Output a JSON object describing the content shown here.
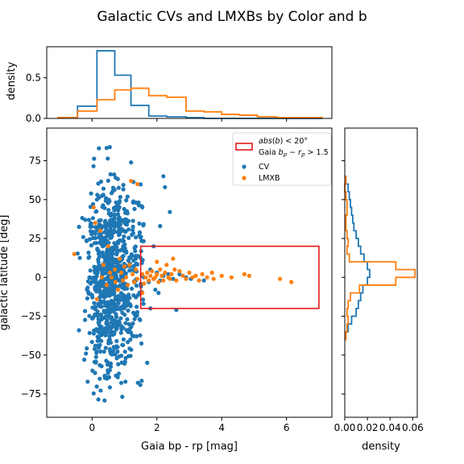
{
  "title": "Galactic CVs and LMXBs by Color and b",
  "colors": {
    "cv": "#1f77b4",
    "lmxb": "#ff7f0e",
    "box": "#e31a1c",
    "axis": "#000000"
  },
  "chart_data": [
    {
      "panel": "top-histogram",
      "type": "histogram",
      "ylabel": "density",
      "xlim": [
        -1.05,
        7.3
      ],
      "ylim": [
        0,
        0.88
      ],
      "yticks": [
        0.0,
        0.5
      ],
      "ytick_labels": [
        "0.0",
        "0.5"
      ],
      "series": [
        {
          "name": "CV",
          "edges": [
            -1.05,
            -0.45,
            0.15,
            0.7,
            1.2,
            1.75,
            2.3,
            2.9,
            3.45,
            4.0,
            4.55,
            5.1,
            5.7,
            7.1
          ],
          "values": [
            0.01,
            0.15,
            0.83,
            0.53,
            0.16,
            0.03,
            0.02,
            0.01,
            0.0,
            0.0,
            0.0,
            0.0,
            0.0
          ]
        },
        {
          "name": "LMXB",
          "edges": [
            -1.05,
            -0.45,
            0.15,
            0.7,
            1.2,
            1.75,
            2.3,
            2.9,
            3.45,
            4.0,
            4.55,
            5.1,
            5.7,
            7.1
          ],
          "values": [
            0.01,
            0.09,
            0.23,
            0.35,
            0.37,
            0.28,
            0.26,
            0.09,
            0.08,
            0.05,
            0.04,
            0.02,
            0.01
          ]
        }
      ]
    },
    {
      "panel": "main-scatter",
      "type": "scatter",
      "xlabel": "Gaia bp - rp [mag]",
      "ylabel": "galactic latitude [deg]",
      "xlim": [
        -1.4,
        7.4
      ],
      "ylim": [
        -90,
        96
      ],
      "xticks": [
        0,
        2,
        4,
        6
      ],
      "yticks": [
        -75,
        -50,
        -25,
        0,
        25,
        50,
        75
      ],
      "legend": {
        "placement": "top-right",
        "region_label": "abs(b) < 20°",
        "region_label_2": "Gaia b_p − r_p > 1.5",
        "items": [
          "CV",
          "LMXB"
        ]
      },
      "region": {
        "x": [
          1.5,
          7.0
        ],
        "y": [
          -20,
          20
        ]
      },
      "series": [
        {
          "name": "CV",
          "generated": "dense cloud of ~900 CVs, color 0–1.5 mag, latitude −80 to +85 deg"
        },
        {
          "name": "LMXB",
          "points": [
            [
              -0.55,
              15
            ],
            [
              0.05,
              45
            ],
            [
              0.25,
              30
            ],
            [
              0.35,
              8
            ],
            [
              0.15,
              -14
            ],
            [
              0.45,
              -5
            ],
            [
              0.5,
              20
            ],
            [
              0.6,
              0
            ],
            [
              0.7,
              5
            ],
            [
              0.72,
              -3
            ],
            [
              0.8,
              -8
            ],
            [
              0.85,
              12
            ],
            [
              0.9,
              3
            ],
            [
              0.95,
              -2
            ],
            [
              1.0,
              7
            ],
            [
              1.05,
              0
            ],
            [
              1.1,
              -5
            ],
            [
              1.15,
              8
            ],
            [
              1.2,
              62
            ],
            [
              1.25,
              2
            ],
            [
              1.3,
              -3
            ],
            [
              1.35,
              5
            ],
            [
              1.4,
              -1
            ],
            [
              1.55,
              2
            ],
            [
              1.6,
              -4
            ],
            [
              1.65,
              0
            ],
            [
              1.7,
              3
            ],
            [
              1.75,
              -2
            ],
            [
              1.8,
              1
            ],
            [
              1.85,
              4
            ],
            [
              1.9,
              -1
            ],
            [
              1.95,
              0
            ],
            [
              2.0,
              2
            ],
            [
              2.05,
              -3
            ],
            [
              2.1,
              5
            ],
            [
              2.15,
              1
            ],
            [
              2.2,
              -2
            ],
            [
              2.25,
              3
            ],
            [
              2.3,
              8
            ],
            [
              2.35,
              0
            ],
            [
              2.4,
              -1
            ],
            [
              2.45,
              2
            ],
            [
              2.55,
              5
            ],
            [
              2.6,
              -2
            ],
            [
              2.7,
              4
            ],
            [
              2.8,
              1
            ],
            [
              2.9,
              -1
            ],
            [
              3.0,
              3
            ],
            [
              3.1,
              0
            ],
            [
              3.2,
              1
            ],
            [
              3.3,
              -2
            ],
            [
              3.4,
              2
            ],
            [
              3.55,
              0
            ],
            [
              3.7,
              3
            ],
            [
              3.75,
              -1
            ],
            [
              4.0,
              1
            ],
            [
              4.3,
              0
            ],
            [
              4.7,
              2
            ],
            [
              4.85,
              1
            ],
            [
              5.8,
              -1
            ],
            [
              6.15,
              -3
            ],
            [
              2.5,
              12
            ],
            [
              2.0,
              10
            ],
            [
              1.55,
              -10
            ],
            [
              0.3,
              0
            ],
            [
              0.55,
              3
            ],
            [
              1.4,
              60
            ],
            [
              0.1,
              35
            ]
          ]
        }
      ]
    },
    {
      "panel": "right-histogram",
      "type": "histogram",
      "orientation": "horizontal",
      "xlabel": "density",
      "xlim": [
        0,
        0.064
      ],
      "xticks": [
        0.0,
        0.02,
        0.04,
        0.06
      ],
      "xtick_labels": [
        "0.00",
        "0.02",
        "0.04",
        "0.06"
      ],
      "series": [
        {
          "name": "CV",
          "edges": [
            -40,
            -35,
            -30,
            -25,
            -20,
            -15,
            -10,
            -5,
            0,
            5,
            10,
            15,
            20,
            25,
            30,
            35,
            40,
            45,
            50,
            55,
            60,
            65
          ],
          "values": [
            0.001,
            0.003,
            0.006,
            0.01,
            0.012,
            0.014,
            0.016,
            0.02,
            0.022,
            0.02,
            0.017,
            0.014,
            0.012,
            0.01,
            0.008,
            0.007,
            0.006,
            0.005,
            0.004,
            0.003,
            0.001
          ]
        },
        {
          "name": "LMXB",
          "edges": [
            -40,
            -35,
            -30,
            -25,
            -20,
            -15,
            -10,
            -5,
            0,
            5,
            10,
            15,
            20,
            25,
            30,
            35,
            40,
            45,
            50,
            55,
            60,
            65
          ],
          "values": [
            0.001,
            0.002,
            0.003,
            0.002,
            0.003,
            0.005,
            0.013,
            0.045,
            0.062,
            0.045,
            0.004,
            0.002,
            0.003,
            0.002,
            0.001,
            0.001,
            0.002,
            0.002,
            0.001,
            0.0,
            0.001
          ]
        }
      ]
    }
  ]
}
